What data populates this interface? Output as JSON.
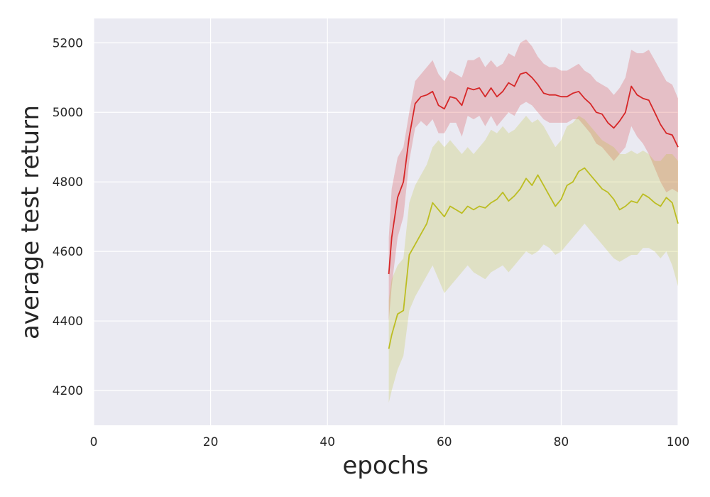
{
  "chart_data": {
    "type": "line",
    "title": "",
    "xlabel": "epochs",
    "ylabel": "average test return",
    "xlim": [
      0,
      100
    ],
    "ylim": [
      4100,
      5270
    ],
    "x_ticks": [
      0,
      20,
      40,
      60,
      80,
      100
    ],
    "y_ticks": [
      4200,
      4400,
      4600,
      4800,
      5000,
      5200
    ],
    "grid": true,
    "legend": "none",
    "colors": {
      "background": "#EAEAF2",
      "grid": "#FFFFFF",
      "text": "#262626"
    },
    "series": [
      {
        "color": "#D62728",
        "band_color": "#D62728",
        "x": [
          50.5,
          51,
          52,
          53,
          54,
          55,
          56,
          57,
          58,
          59,
          60,
          61,
          62,
          63,
          64,
          65,
          66,
          67,
          68,
          69,
          70,
          71,
          72,
          73,
          74,
          75,
          76,
          77,
          78,
          79,
          80,
          81,
          82,
          83,
          84,
          85,
          86,
          87,
          88,
          89,
          90,
          91,
          92,
          93,
          94,
          95,
          96,
          97,
          98,
          99,
          100
        ],
        "values": [
          4535,
          4640,
          4755,
          4800,
          4930,
          5025,
          5045,
          5050,
          5060,
          5020,
          5010,
          5045,
          5040,
          5020,
          5070,
          5065,
          5070,
          5045,
          5070,
          5045,
          5060,
          5085,
          5075,
          5110,
          5115,
          5100,
          5080,
          5055,
          5050,
          5050,
          5045,
          5045,
          5055,
          5060,
          5040,
          5025,
          5000,
          4995,
          4970,
          4955,
          4975,
          5000,
          5075,
          5050,
          5040,
          5035,
          5000,
          4965,
          4940,
          4935,
          4900
        ],
        "lower": [
          4400,
          4500,
          4640,
          4700,
          4860,
          4955,
          4975,
          4960,
          4980,
          4940,
          4940,
          4970,
          4970,
          4930,
          4990,
          4980,
          4990,
          4960,
          4990,
          4960,
          4980,
          5000,
          4990,
          5020,
          5030,
          5020,
          5000,
          4980,
          4970,
          4970,
          4970,
          4970,
          4980,
          4980,
          4960,
          4940,
          4910,
          4900,
          4880,
          4860,
          4880,
          4900,
          4960,
          4930,
          4910,
          4880,
          4840,
          4800,
          4770,
          4780,
          4770
        ],
        "upper": [
          4640,
          4780,
          4870,
          4900,
          5000,
          5090,
          5110,
          5130,
          5150,
          5110,
          5090,
          5120,
          5110,
          5100,
          5150,
          5150,
          5160,
          5130,
          5150,
          5130,
          5140,
          5170,
          5160,
          5200,
          5210,
          5190,
          5160,
          5140,
          5130,
          5130,
          5120,
          5120,
          5130,
          5140,
          5120,
          5110,
          5090,
          5080,
          5070,
          5050,
          5070,
          5100,
          5180,
          5170,
          5170,
          5180,
          5150,
          5120,
          5090,
          5080,
          5040
        ]
      },
      {
        "color": "#BCBD22",
        "band_color": "#BCBD22",
        "x": [
          50.5,
          51,
          52,
          53,
          54,
          55,
          56,
          57,
          58,
          59,
          60,
          61,
          62,
          63,
          64,
          65,
          66,
          67,
          68,
          69,
          70,
          71,
          72,
          73,
          74,
          75,
          76,
          77,
          78,
          79,
          80,
          81,
          82,
          83,
          84,
          85,
          86,
          87,
          88,
          89,
          90,
          91,
          92,
          93,
          94,
          95,
          96,
          97,
          98,
          99,
          100
        ],
        "values": [
          4320,
          4360,
          4420,
          4430,
          4590,
          4620,
          4650,
          4680,
          4740,
          4720,
          4700,
          4730,
          4720,
          4710,
          4730,
          4720,
          4730,
          4725,
          4740,
          4750,
          4770,
          4745,
          4760,
          4780,
          4810,
          4790,
          4820,
          4790,
          4760,
          4730,
          4750,
          4790,
          4800,
          4830,
          4840,
          4820,
          4800,
          4780,
          4770,
          4750,
          4720,
          4730,
          4745,
          4740,
          4765,
          4755,
          4740,
          4730,
          4755,
          4740,
          4680
        ],
        "lower": [
          4165,
          4200,
          4260,
          4300,
          4430,
          4470,
          4500,
          4530,
          4560,
          4520,
          4480,
          4500,
          4520,
          4540,
          4560,
          4540,
          4530,
          4520,
          4540,
          4550,
          4560,
          4540,
          4560,
          4580,
          4600,
          4590,
          4600,
          4620,
          4610,
          4590,
          4600,
          4620,
          4640,
          4660,
          4680,
          4660,
          4640,
          4620,
          4600,
          4580,
          4570,
          4580,
          4590,
          4590,
          4610,
          4610,
          4600,
          4580,
          4600,
          4560,
          4500
        ],
        "upper": [
          4460,
          4520,
          4560,
          4580,
          4740,
          4790,
          4820,
          4850,
          4900,
          4920,
          4900,
          4920,
          4900,
          4880,
          4900,
          4880,
          4900,
          4920,
          4950,
          4940,
          4960,
          4940,
          4950,
          4970,
          4990,
          4970,
          4980,
          4960,
          4930,
          4900,
          4920,
          4960,
          4970,
          4990,
          4980,
          4960,
          4940,
          4920,
          4910,
          4900,
          4880,
          4880,
          4890,
          4880,
          4890,
          4880,
          4860,
          4860,
          4880,
          4880,
          4860
        ]
      }
    ]
  }
}
